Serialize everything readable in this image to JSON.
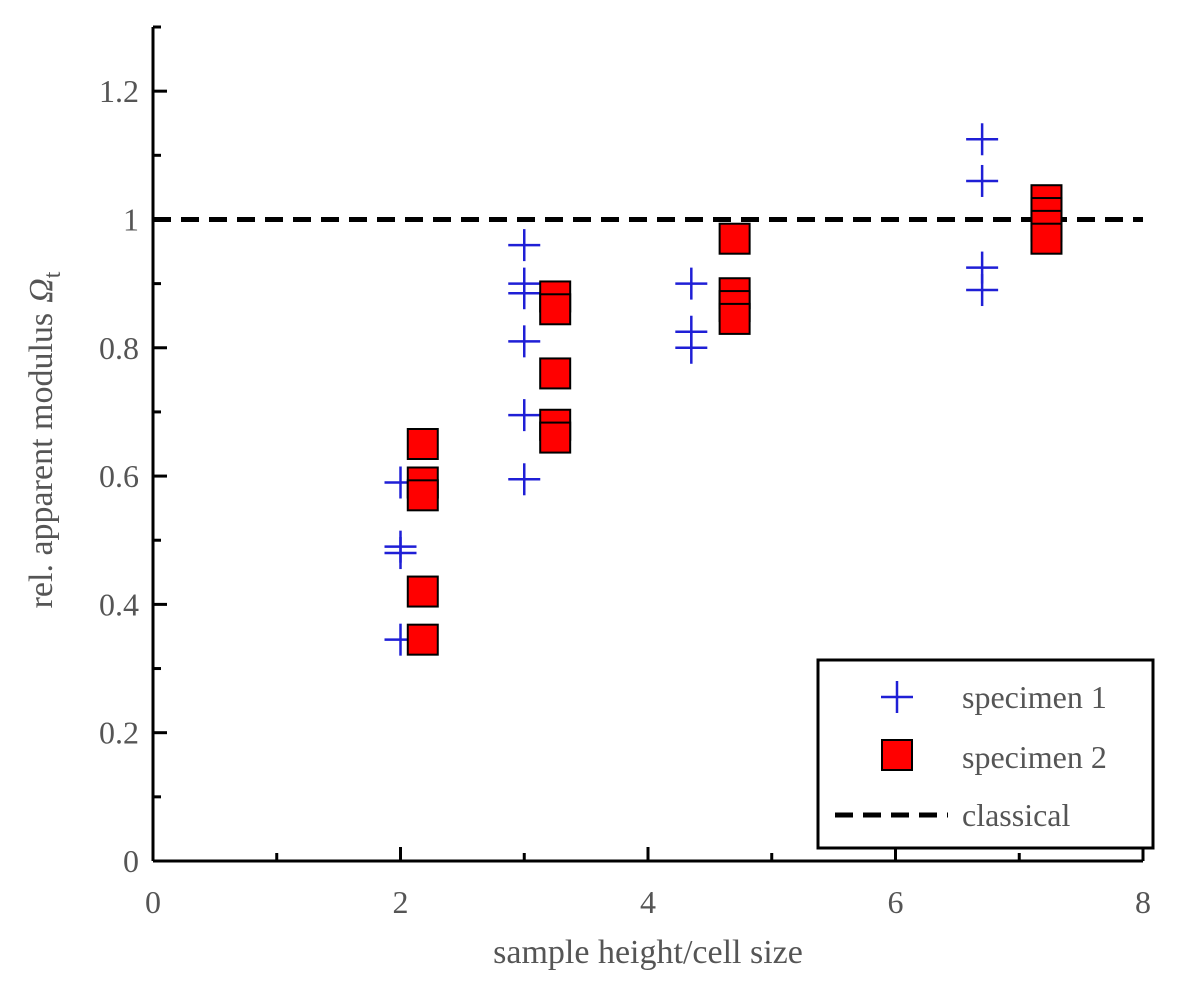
{
  "chart_data": {
    "type": "scatter",
    "xlabel": "sample height/cell size",
    "ylabel": "rel. apparent modulus",
    "ylabel_symbol": "Ω",
    "ylabel_subscript": "t",
    "xlim": [
      0,
      8
    ],
    "ylim": [
      0,
      1.3
    ],
    "x_ticks": [
      0,
      2,
      4,
      6,
      8
    ],
    "x_tick_labels": [
      "0",
      "2",
      "4",
      "6",
      "8"
    ],
    "y_ticks": [
      0,
      0.2,
      0.4,
      0.6,
      0.8,
      1,
      1.2
    ],
    "y_tick_labels": [
      "0",
      "0.2",
      "0.4",
      "0.6",
      "0.8",
      "1",
      "1.2"
    ],
    "grid": false,
    "legend_position": "bottom-right",
    "colors": {
      "specimen_1": "#1f1fd6",
      "specimen_2_fill": "#ff0000",
      "specimen_2_edge": "#000000",
      "classical": "#000000"
    },
    "series": [
      {
        "name": "specimen 1",
        "marker": "plus",
        "points": [
          {
            "x": 2.0,
            "y": 0.59
          },
          {
            "x": 2.0,
            "y": 0.49
          },
          {
            "x": 2.0,
            "y": 0.48
          },
          {
            "x": 2.0,
            "y": 0.345
          },
          {
            "x": 3.0,
            "y": 0.96
          },
          {
            "x": 3.0,
            "y": 0.9
          },
          {
            "x": 3.0,
            "y": 0.885
          },
          {
            "x": 3.0,
            "y": 0.81
          },
          {
            "x": 3.0,
            "y": 0.695
          },
          {
            "x": 3.0,
            "y": 0.595
          },
          {
            "x": 4.35,
            "y": 0.9
          },
          {
            "x": 4.35,
            "y": 0.825
          },
          {
            "x": 4.35,
            "y": 0.8
          },
          {
            "x": 6.7,
            "y": 1.125
          },
          {
            "x": 6.7,
            "y": 1.06
          },
          {
            "x": 6.7,
            "y": 0.925
          },
          {
            "x": 6.7,
            "y": 0.89
          }
        ]
      },
      {
        "name": "specimen 2",
        "marker": "square",
        "points": [
          {
            "x": 2.18,
            "y": 0.65
          },
          {
            "x": 2.18,
            "y": 0.59
          },
          {
            "x": 2.18,
            "y": 0.57
          },
          {
            "x": 2.18,
            "y": 0.42
          },
          {
            "x": 2.18,
            "y": 0.345
          },
          {
            "x": 3.25,
            "y": 0.88
          },
          {
            "x": 3.25,
            "y": 0.86
          },
          {
            "x": 3.25,
            "y": 0.76
          },
          {
            "x": 3.25,
            "y": 0.68
          },
          {
            "x": 3.25,
            "y": 0.66
          },
          {
            "x": 4.7,
            "y": 0.97
          },
          {
            "x": 4.7,
            "y": 0.885
          },
          {
            "x": 4.7,
            "y": 0.865
          },
          {
            "x": 4.7,
            "y": 0.845
          },
          {
            "x": 7.22,
            "y": 1.03
          },
          {
            "x": 7.22,
            "y": 1.01
          },
          {
            "x": 7.22,
            "y": 0.99
          },
          {
            "x": 7.22,
            "y": 0.97
          }
        ]
      },
      {
        "name": "classical",
        "marker": "dashed-line",
        "y": 1.0
      }
    ]
  }
}
